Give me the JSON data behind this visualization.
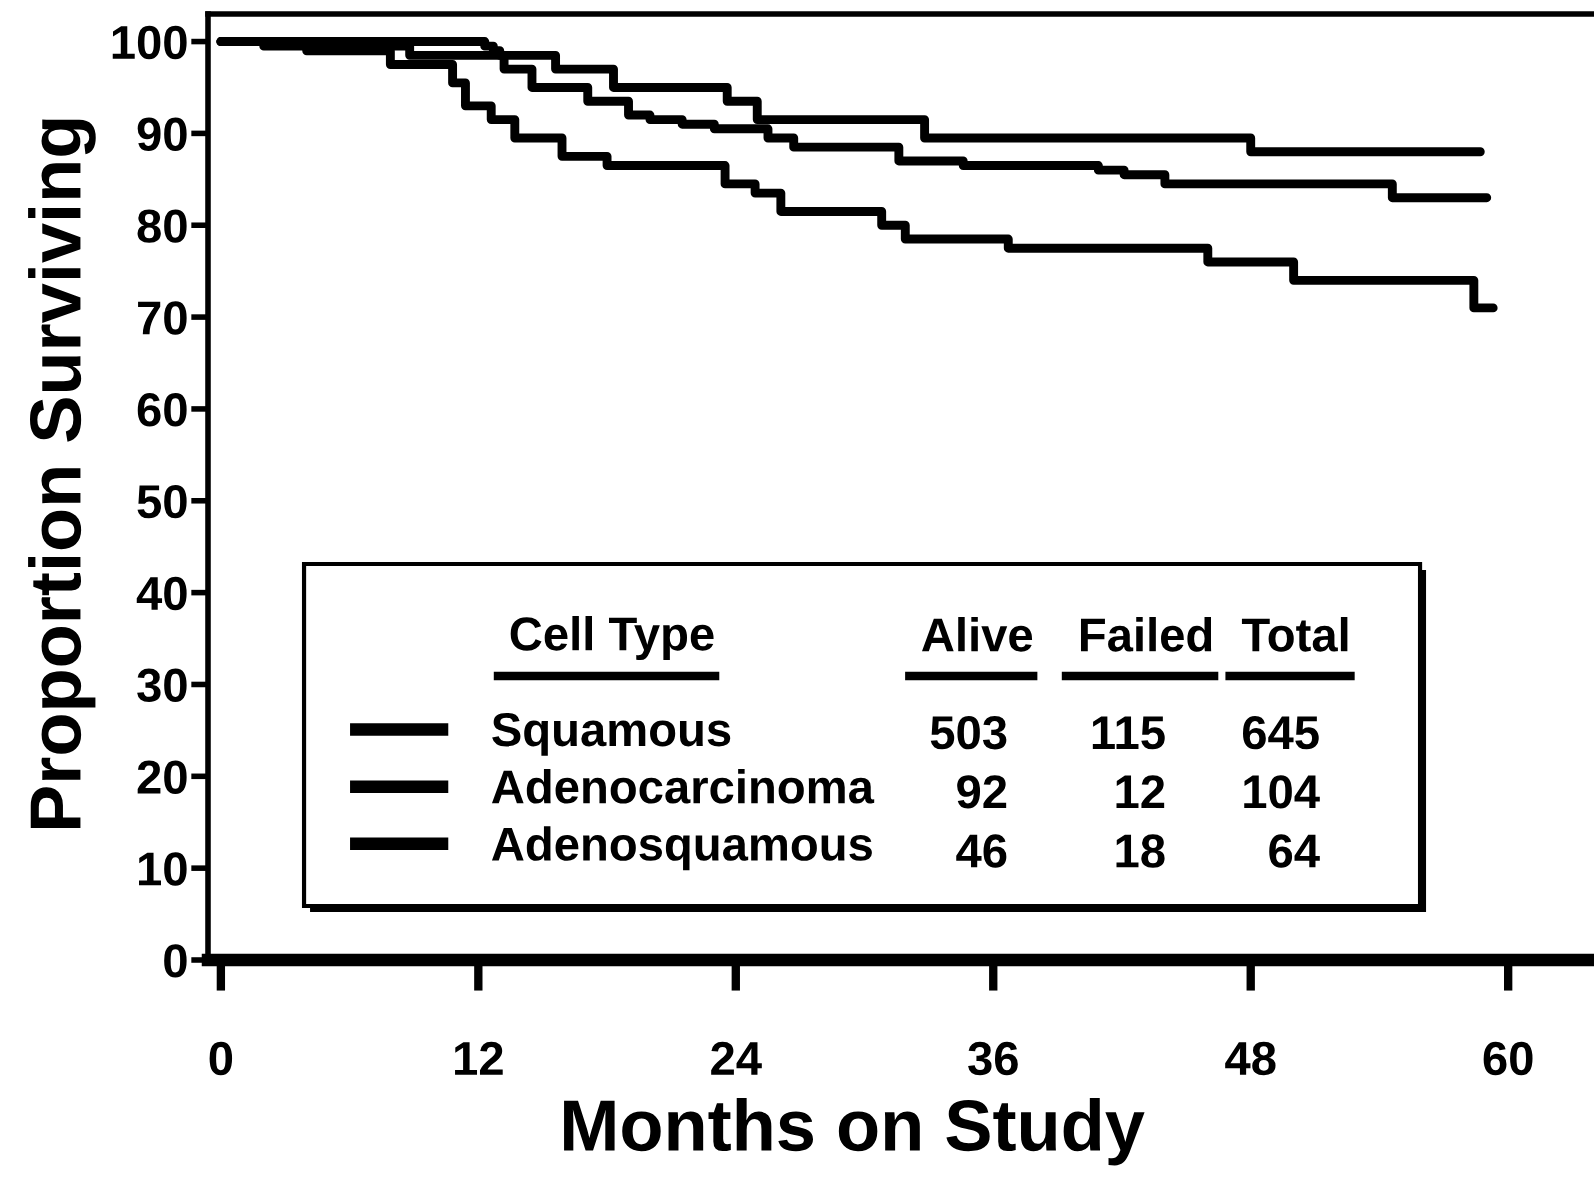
{
  "chart_data": {
    "type": "step",
    "xlabel": "Months on Study",
    "ylabel": "Proportion Surviving",
    "xlim": [
      -0.6,
      64
    ],
    "ylim": [
      0,
      103
    ],
    "xticks": [
      0,
      12,
      24,
      36,
      48,
      60
    ],
    "yticks": [
      0,
      10,
      20,
      30,
      40,
      50,
      60,
      70,
      80,
      90,
      100
    ],
    "grid": false,
    "line_style": "solid",
    "legend": "bottom",
    "legend_title": "Cell Type",
    "series": [
      {
        "name": "Squamous",
        "color": "#000000",
        "x": [
          0,
          2.0,
          8.8,
          13.2,
          14.5,
          17.1,
          19.0,
          20.0,
          21.5,
          23.0,
          25.5,
          26.7,
          31.6,
          34.6,
          40.9,
          42.1,
          44.0,
          54.6,
          59.0
        ],
        "values": [
          100,
          99.5,
          98.5,
          97,
          95,
          93.5,
          92,
          91.5,
          91,
          90.5,
          89.5,
          88.5,
          87,
          86.5,
          86,
          85.5,
          84.5,
          83,
          83
        ]
      },
      {
        "name": "Adenocarcinoma",
        "color": "#000000",
        "x": [
          0,
          12.3,
          12.7,
          13.0,
          15.6,
          18.3,
          23.6,
          25.0,
          32.8,
          48.0,
          58.7
        ],
        "values": [
          100,
          99.5,
          99,
          98.5,
          97,
          95,
          93.5,
          91.5,
          89.5,
          88,
          88
        ]
      },
      {
        "name": "Adenosquamous",
        "color": "#000000",
        "x": [
          0,
          4.0,
          7.9,
          10.8,
          11.4,
          12.6,
          13.7,
          15.9,
          18.0,
          23.5,
          24.9,
          26.1,
          30.8,
          31.9,
          36.7,
          46.0,
          50.0,
          58.4,
          59.3
        ],
        "values": [
          100,
          99,
          97.5,
          95.5,
          93,
          91.5,
          89.5,
          87.5,
          86.5,
          84.5,
          83.5,
          81.5,
          80,
          78.5,
          77.5,
          76,
          74,
          71,
          71
        ]
      }
    ],
    "annotations": [
      "Alive",
      "Failed",
      "Total",
      "503",
      "115",
      "645",
      "92",
      "12",
      "104",
      "46",
      "18",
      "64"
    ]
  }
}
